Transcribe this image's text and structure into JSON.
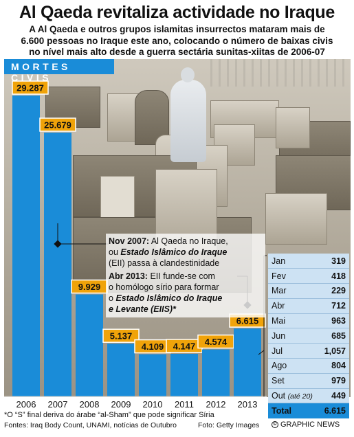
{
  "title": "Al Qaeda revitaliza actividade no Iraque",
  "subtitle_lines": [
    "A Al Qaeda e outros grupos islamitas insurrectos mataram mais de",
    "6.600 pessoas no Iraque este ano, colocando o número de baixas civis",
    "no nível mais alto desde a guerra sectária sunitas-xiitas de 2006-07"
  ],
  "banner": "MORTES CIVIS",
  "chart_data": {
    "type": "bar",
    "categories": [
      "2006",
      "2007",
      "2008",
      "2009",
      "2010",
      "2011",
      "2012",
      "2013"
    ],
    "values": [
      29287,
      25679,
      9929,
      5137,
      4109,
      4147,
      4574,
      6615
    ],
    "value_labels": [
      "29.287",
      "25.679",
      "9.929",
      "5.137",
      "4.109",
      "4.147",
      "4.574",
      "6.615"
    ],
    "title": "MORTES CIVIS",
    "ylim": [
      0,
      30000
    ],
    "grid": false,
    "colors": {
      "bar": "#1a8cd8",
      "label_bg": "#f0a30a"
    }
  },
  "annotations": {
    "nov2007": {
      "lead": "Nov 2007:",
      "text1": " Al Qaeda no Iraque,",
      "text2_pre": "ou ",
      "text2_it": "Estado Islâmico do Iraque",
      "text3": "(EII) passa à clandestinidade"
    },
    "abr2013": {
      "lead": "Abr 2013:",
      "text1": " EII funde-se com",
      "text2": "o homólogo sírio para formar",
      "text3_pre": "o ",
      "text3_it": "Estado Islâmico do Iraque",
      "text4_it": "e Levante (EIIS)*"
    }
  },
  "monthly": {
    "rows": [
      {
        "month": "Jan",
        "value": "319"
      },
      {
        "month": "Fev",
        "value": "418"
      },
      {
        "month": "Mar",
        "value": "229"
      },
      {
        "month": "Abr",
        "value": "712"
      },
      {
        "month": "Mai",
        "value": "963"
      },
      {
        "month": "Jun",
        "value": "685"
      },
      {
        "month": "Jul",
        "value": "1,057"
      },
      {
        "month": "Ago",
        "value": "804"
      },
      {
        "month": "Set",
        "value": "979"
      },
      {
        "month": "Out",
        "note": "(até 20)",
        "value": "449"
      }
    ],
    "total_label": "Total",
    "total_value": "6.615"
  },
  "footnote": "*O “S” final deriva do árabe “al-Sham” que pode significar Síria",
  "sources": "Fontes: Iraq Body Count, UNAMI, notícias de Outubro",
  "photo_credit": "Foto: Getty Images",
  "brand": "GRAPHIC NEWS"
}
